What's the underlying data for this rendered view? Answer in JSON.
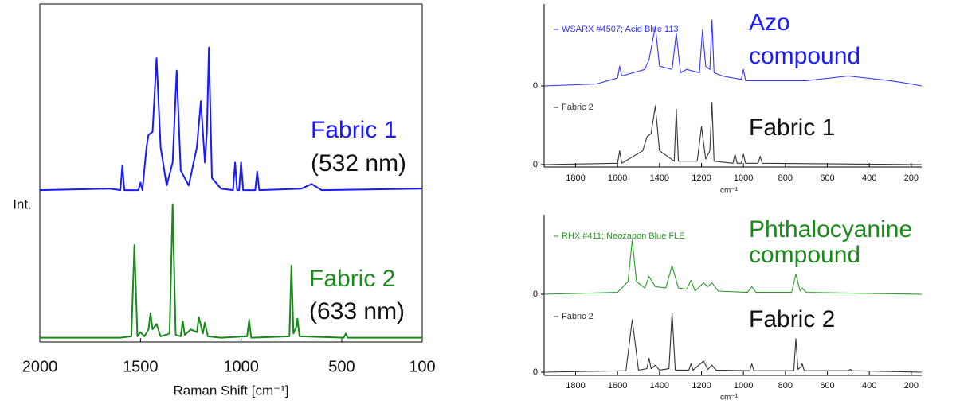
{
  "chart_data": [
    {
      "type": "line",
      "y_label": "Int.",
      "xlim": [
        2000,
        100
      ],
      "ylim": [
        0,
        100
      ],
      "x": [
        2000,
        1650,
        1600,
        1590,
        1580,
        1510,
        1500,
        1490,
        1470,
        1460,
        1440,
        1420,
        1400,
        1370,
        1340,
        1320,
        1300,
        1260,
        1220,
        1200,
        1180,
        1170,
        1160,
        1145,
        1100,
        1040,
        1030,
        1020,
        1010,
        1000,
        990,
        930,
        920,
        910,
        700,
        650,
        600,
        100
      ],
      "series": [
        {
          "color": "#1a1aff",
          "values": [
            2,
            3,
            2,
            18,
            2,
            2,
            7,
            2,
            30,
            38,
            40,
            88,
            30,
            5,
            20,
            80,
            15,
            5,
            30,
            60,
            20,
            40,
            95,
            10,
            3,
            2,
            20,
            2,
            2,
            20,
            2,
            2,
            14,
            2,
            3,
            6,
            2,
            3
          ]
        }
      ],
      "annotations": [
        {
          "text": "Fabric 1",
          "color": "#1a1aff"
        },
        {
          "text": "(532 nm)",
          "color": "#111111"
        }
      ]
    },
    {
      "type": "line",
      "x_label": "Raman Shift [cm⁻¹]",
      "xlim": [
        2000,
        100
      ],
      "ylim": [
        0,
        105
      ],
      "xticks": [
        2000,
        1500,
        1000,
        500,
        100
      ],
      "x": [
        2000,
        1600,
        1545,
        1530,
        1515,
        1500,
        1480,
        1460,
        1450,
        1440,
        1420,
        1400,
        1355,
        1340,
        1325,
        1300,
        1290,
        1280,
        1250,
        1220,
        1210,
        1190,
        1180,
        1165,
        1100,
        970,
        960,
        950,
        760,
        750,
        740,
        725,
        720,
        710,
        490,
        480,
        470,
        100
      ],
      "series": [
        {
          "color": "#1a8a1a",
          "values": [
            2,
            2,
            3,
            70,
            3,
            6,
            3,
            8,
            20,
            8,
            12,
            3,
            5,
            100,
            4,
            3,
            14,
            4,
            8,
            6,
            17,
            5,
            13,
            3,
            2,
            3,
            15,
            2,
            3,
            55,
            5,
            10,
            16,
            3,
            2,
            5,
            2,
            2
          ]
        }
      ],
      "annotations": [
        {
          "text": "Fabric 2",
          "color": "#1a8a1a"
        },
        {
          "text": "(633 nm)",
          "color": "#111111"
        }
      ]
    },
    {
      "type": "line",
      "xlim": [
        1950,
        150
      ],
      "ylim": [
        0,
        100
      ],
      "yticks": [
        0
      ],
      "x": [
        1950,
        1700,
        1600,
        1590,
        1580,
        1470,
        1450,
        1420,
        1400,
        1340,
        1320,
        1300,
        1270,
        1210,
        1195,
        1180,
        1160,
        1150,
        1140,
        1100,
        1050,
        1010,
        1000,
        990,
        900,
        700,
        500,
        300,
        200,
        150
      ],
      "series": [
        {
          "name": "WSARX #4507; Acid Blue 113",
          "color": "#3333ff",
          "values": [
            0,
            3,
            12,
            30,
            15,
            25,
            40,
            90,
            30,
            25,
            80,
            20,
            25,
            20,
            85,
            30,
            25,
            100,
            20,
            15,
            12,
            10,
            25,
            8,
            8,
            8,
            15,
            8,
            3,
            0
          ]
        }
      ],
      "annotations": [
        {
          "text": "Azo",
          "color": "#1a1aff"
        },
        {
          "text": "compound",
          "color": "#1a1aff"
        }
      ]
    },
    {
      "type": "line",
      "xlim": [
        1950,
        150
      ],
      "ylim": [
        0,
        100
      ],
      "yticks": [
        0
      ],
      "xticks": [
        1800,
        1600,
        1400,
        1200,
        1000,
        800,
        600,
        400,
        200
      ],
      "x_label": "cm⁻¹",
      "x": [
        1950,
        1600,
        1590,
        1580,
        1480,
        1460,
        1440,
        1420,
        1400,
        1330,
        1320,
        1310,
        1220,
        1200,
        1180,
        1160,
        1150,
        1140,
        1050,
        1040,
        1030,
        1010,
        1000,
        990,
        930,
        920,
        910,
        150
      ],
      "series": [
        {
          "name": "Fabric 2",
          "color": "#333333",
          "values": [
            0,
            2,
            20,
            2,
            20,
            40,
            45,
            85,
            20,
            5,
            80,
            5,
            5,
            55,
            8,
            20,
            90,
            5,
            2,
            15,
            2,
            2,
            15,
            2,
            2,
            12,
            2,
            0
          ]
        }
      ],
      "annotations": [
        {
          "text": "Fabric 1",
          "color": "#111111"
        }
      ]
    },
    {
      "type": "line",
      "xlim": [
        1950,
        150
      ],
      "ylim": [
        0,
        100
      ],
      "yticks": [
        0
      ],
      "x": [
        1950,
        1600,
        1550,
        1530,
        1510,
        1470,
        1450,
        1420,
        1370,
        1340,
        1310,
        1270,
        1250,
        1230,
        1190,
        1170,
        1150,
        1120,
        980,
        960,
        940,
        770,
        750,
        730,
        720,
        700,
        150
      ],
      "series": [
        {
          "name": "RHX #411; Neozapon Blue FLE",
          "color": "#2a9a2a",
          "values": [
            0,
            3,
            20,
            85,
            20,
            10,
            28,
            12,
            10,
            45,
            10,
            8,
            22,
            5,
            18,
            12,
            18,
            5,
            3,
            12,
            3,
            3,
            32,
            5,
            10,
            3,
            0
          ]
        }
      ],
      "annotations": [
        {
          "text": "Phthalocyanine",
          "color": "#1a8a1a"
        },
        {
          "text": "compound",
          "color": "#1a8a1a"
        }
      ]
    },
    {
      "type": "line",
      "xlim": [
        1950,
        150
      ],
      "ylim": [
        0,
        100
      ],
      "yticks": [
        0
      ],
      "xticks": [
        1800,
        1600,
        1400,
        1200,
        1000,
        800,
        600,
        400,
        200
      ],
      "x_label": "cm⁻¹",
      "x": [
        1950,
        1560,
        1530,
        1500,
        1460,
        1450,
        1440,
        1420,
        1400,
        1355,
        1340,
        1325,
        1260,
        1250,
        1240,
        1190,
        1170,
        1150,
        1130,
        970,
        960,
        950,
        760,
        750,
        740,
        725,
        720,
        710,
        500,
        490,
        480,
        150
      ],
      "series": [
        {
          "name": "Fabric 2",
          "color": "#333333",
          "values": [
            0,
            2,
            75,
            3,
            5,
            20,
            5,
            10,
            3,
            5,
            85,
            3,
            3,
            12,
            3,
            16,
            4,
            10,
            3,
            2,
            12,
            2,
            2,
            48,
            4,
            8,
            12,
            2,
            2,
            4,
            2,
            0
          ]
        }
      ],
      "annotations": [
        {
          "text": "Fabric 2",
          "color": "#111111"
        }
      ]
    }
  ]
}
